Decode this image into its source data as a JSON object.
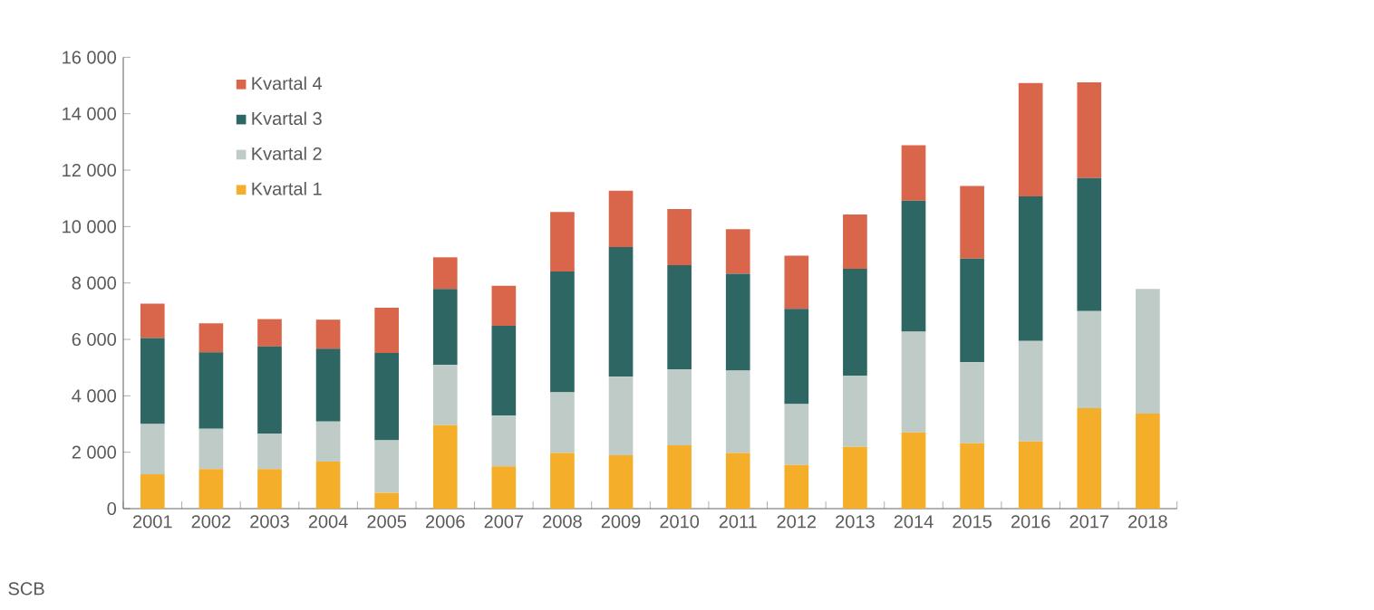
{
  "chart_data": {
    "type": "bar",
    "stacked": true,
    "categories": [
      "2001",
      "2002",
      "2003",
      "2004",
      "2005",
      "2006",
      "2007",
      "2008",
      "2009",
      "2010",
      "2011",
      "2012",
      "2013",
      "2014",
      "2015",
      "2016",
      "2017",
      "2018"
    ],
    "series": [
      {
        "name": "Kvartal 1",
        "color": "#f5ae2a",
        "values": [
          1220,
          1400,
          1400,
          1670,
          560,
          2960,
          1500,
          1970,
          1890,
          2250,
          1970,
          1550,
          2190,
          2700,
          2320,
          2380,
          3560,
          3370
        ]
      },
      {
        "name": "Kvartal 2",
        "color": "#bfcbc6",
        "values": [
          1780,
          1430,
          1260,
          1420,
          1860,
          2130,
          1800,
          2150,
          2790,
          2690,
          2920,
          2160,
          2530,
          3570,
          2870,
          3560,
          3440,
          4420
        ]
      },
      {
        "name": "Kvartal 3",
        "color": "#2e6663",
        "values": [
          3050,
          2710,
          3090,
          2580,
          3100,
          2700,
          3180,
          4290,
          4590,
          3690,
          3440,
          3370,
          3780,
          4650,
          3670,
          5130,
          4720,
          null
        ]
      },
      {
        "name": "Kvartal 4",
        "color": "#d9654a",
        "values": [
          1220,
          1030,
          970,
          1030,
          1600,
          1120,
          1420,
          2110,
          2000,
          1990,
          1580,
          1890,
          1930,
          1960,
          2580,
          4020,
          3390,
          null
        ]
      }
    ],
    "ylim": [
      0,
      16000
    ],
    "yticks": [
      {
        "value": 0,
        "label": "0"
      },
      {
        "value": 2000,
        "label": "2 000"
      },
      {
        "value": 4000,
        "label": "4 000"
      },
      {
        "value": 6000,
        "label": "6 000"
      },
      {
        "value": 8000,
        "label": "8 000"
      },
      {
        "value": 10000,
        "label": "10 000"
      },
      {
        "value": 12000,
        "label": "12 000"
      },
      {
        "value": 14000,
        "label": "14 000"
      },
      {
        "value": 16000,
        "label": "16 000"
      }
    ],
    "grid": false,
    "legend": "top left",
    "annotations": [
      "SCB"
    ]
  }
}
